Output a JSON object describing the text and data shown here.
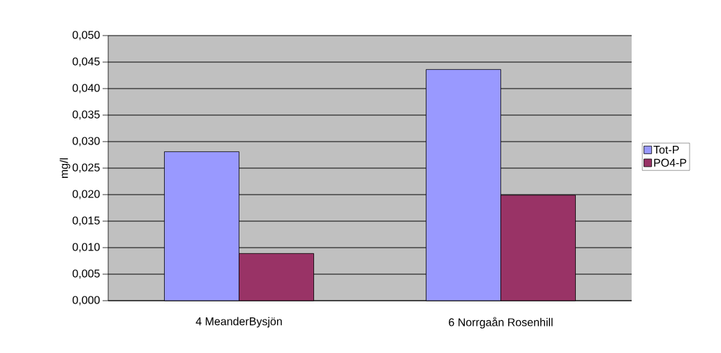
{
  "chart_data": {
    "type": "bar",
    "ylabel": "mg/l",
    "categories": [
      "4 MeanderBysjön",
      "6 Norrgaån Rosenhill"
    ],
    "series": [
      {
        "name": "Tot-P",
        "color": "#9999ff",
        "values": [
          0.0281,
          0.0436
        ]
      },
      {
        "name": "PO4-P",
        "color": "#993366",
        "values": [
          0.0089,
          0.0199
        ]
      }
    ],
    "ylim": [
      0,
      0.05
    ],
    "yticks": [
      {
        "value": 0,
        "label": "0,000"
      },
      {
        "value": 0.005,
        "label": "0,005"
      },
      {
        "value": 0.01,
        "label": "0,010"
      },
      {
        "value": 0.015,
        "label": "0,015"
      },
      {
        "value": 0.02,
        "label": "0,020"
      },
      {
        "value": 0.025,
        "label": "0,025"
      },
      {
        "value": 0.03,
        "label": "0,030"
      },
      {
        "value": 0.035,
        "label": "0,035"
      },
      {
        "value": 0.04,
        "label": "0,040"
      },
      {
        "value": 0.045,
        "label": "0,045"
      },
      {
        "value": 0.05,
        "label": "0,050"
      }
    ],
    "grid": "y",
    "legend": "right"
  }
}
